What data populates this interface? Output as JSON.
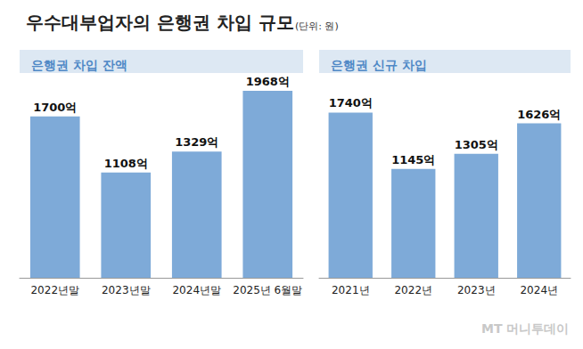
{
  "header": {
    "title": "우수대부업자의 은행권 차입 규모",
    "unit": "(단위: 원)",
    "watermark": "MT 머니투데이"
  },
  "chart_data": [
    {
      "type": "bar",
      "title": "은행권 차입 잔액",
      "categories": [
        "2022년말",
        "2023년말",
        "2024년말",
        "2025년 6월말"
      ],
      "values": [
        1700,
        1108,
        1329,
        1968
      ],
      "value_labels": [
        "1700억",
        "1108억",
        "1329억",
        "1968억"
      ],
      "color": "#7eaad8",
      "ylim": [
        0,
        2100
      ],
      "grid": false,
      "data_labels": true,
      "tick_labels": "x"
    },
    {
      "type": "bar",
      "title": "은행권 신규 차입",
      "categories": [
        "2021년",
        "2022년",
        "2023년",
        "2024년"
      ],
      "values": [
        1740,
        1145,
        1305,
        1626
      ],
      "value_labels": [
        "1740억",
        "1145억",
        "1305억",
        "1626억"
      ],
      "color": "#7eaad8",
      "ylim": [
        0,
        2100
      ],
      "grid": false,
      "data_labels": true,
      "tick_labels": "x"
    }
  ]
}
